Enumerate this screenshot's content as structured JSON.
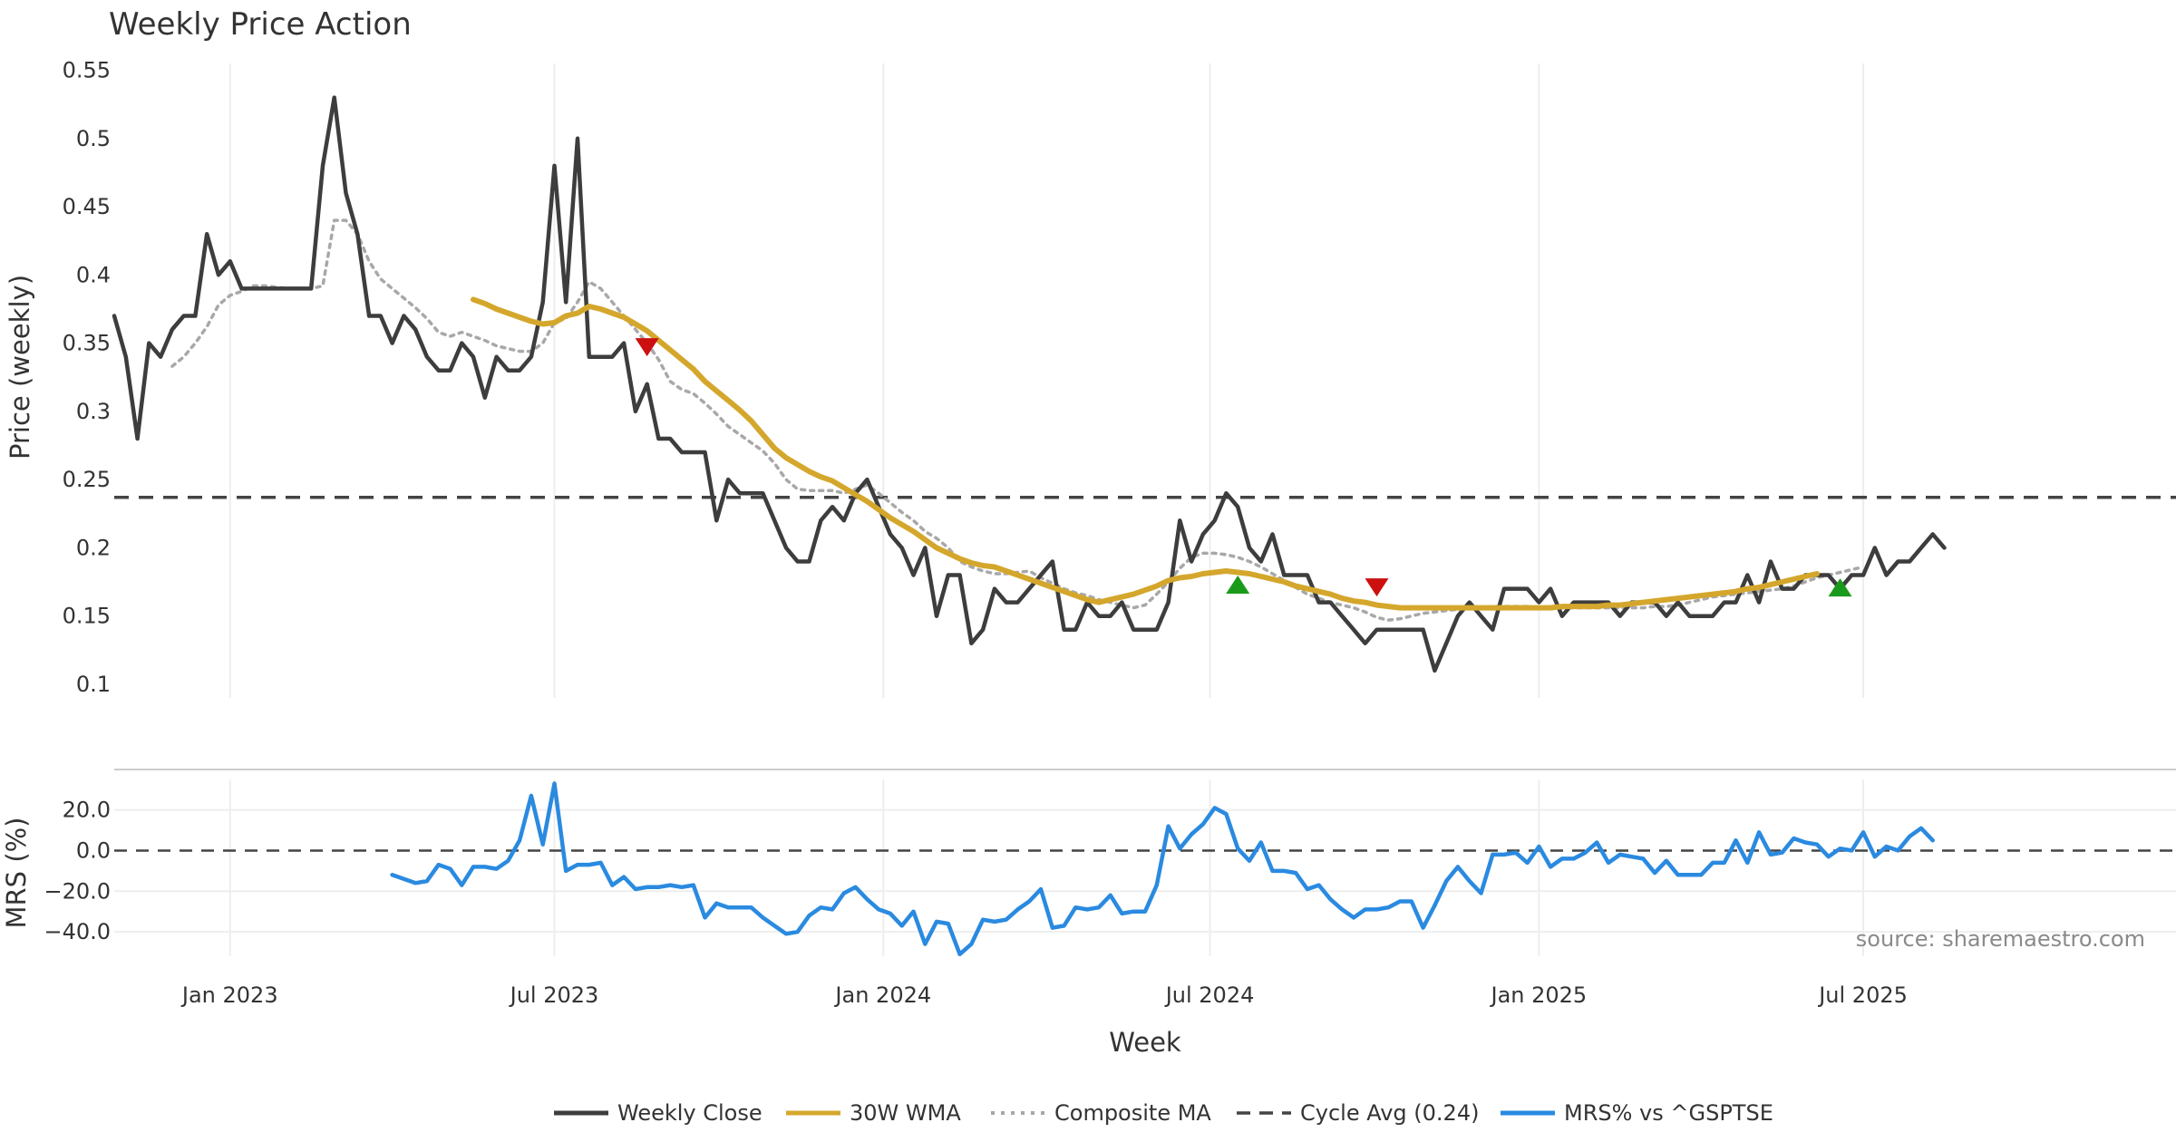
{
  "colors": {
    "close": "#3d3d3d",
    "wma": "#d4a72c",
    "composite": "#a8a8a8",
    "cycle": "#444444",
    "mrs": "#2a8ae0",
    "buy": "#1a9a1a",
    "sell": "#cc1010",
    "grid": "#eeeeee"
  },
  "chart_data": {
    "type": "line",
    "title": "Weekly Price Action",
    "xlabel": "Week",
    "source": "source: sharemaestro.com",
    "x_start_index": 0,
    "x_end_index": 178,
    "date_ticks": [
      {
        "label": "Jan 2023",
        "index": 10
      },
      {
        "label": "Jul 2023",
        "index": 38
      },
      {
        "label": "Jan 2024",
        "index": 66.4
      },
      {
        "label": "Jul 2024",
        "index": 94.6
      },
      {
        "label": "Jan 2025",
        "index": 123
      },
      {
        "label": "Jul 2025",
        "index": 151
      }
    ],
    "price_panel": {
      "ylabel": "Price (weekly)",
      "ylim": [
        0.09,
        0.555
      ],
      "yticks": [
        "0.1",
        "0.15",
        "0.2",
        "0.25",
        "0.3",
        "0.35",
        "0.4",
        "0.45",
        "0.5",
        "0.55"
      ],
      "cycle_avg": 0.237,
      "series": [
        {
          "name": "Weekly Close",
          "start_index": 0,
          "values": [
            0.37,
            0.34,
            0.28,
            0.35,
            0.34,
            0.36,
            0.37,
            0.37,
            0.43,
            0.4,
            0.41,
            0.39,
            0.39,
            0.39,
            0.39,
            0.39,
            0.39,
            0.39,
            0.48,
            0.53,
            0.46,
            0.43,
            0.37,
            0.37,
            0.35,
            0.37,
            0.36,
            0.34,
            0.33,
            0.33,
            0.35,
            0.34,
            0.31,
            0.34,
            0.33,
            0.33,
            0.34,
            0.38,
            0.48,
            0.38,
            0.5,
            0.34,
            0.34,
            0.34,
            0.35,
            0.3,
            0.32,
            0.28,
            0.28,
            0.27,
            0.27,
            0.27,
            0.22,
            0.25,
            0.24,
            0.24,
            0.24,
            0.22,
            0.2,
            0.19,
            0.19,
            0.22,
            0.23,
            0.22,
            0.24,
            0.25,
            0.23,
            0.21,
            0.2,
            0.18,
            0.2,
            0.15,
            0.18,
            0.18,
            0.13,
            0.14,
            0.17,
            0.16,
            0.16,
            0.17,
            0.18,
            0.19,
            0.14,
            0.14,
            0.16,
            0.15,
            0.15,
            0.16,
            0.14,
            0.14,
            0.14,
            0.16,
            0.22,
            0.19,
            0.21,
            0.22,
            0.24,
            0.23,
            0.2,
            0.19,
            0.21,
            0.18,
            0.18,
            0.18,
            0.16,
            0.16,
            0.15,
            0.14,
            0.13,
            0.14,
            0.14,
            0.14,
            0.14,
            0.14,
            0.11,
            0.13,
            0.15,
            0.16,
            0.15,
            0.14,
            0.17,
            0.17,
            0.17,
            0.16,
            0.17,
            0.15,
            0.16,
            0.16,
            0.16,
            0.16,
            0.15,
            0.16,
            0.16,
            0.16,
            0.15,
            0.16,
            0.15,
            0.15,
            0.15,
            0.16,
            0.16,
            0.18,
            0.16,
            0.19,
            0.17,
            0.17,
            0.18,
            0.18,
            0.18,
            0.17,
            0.18,
            0.18,
            0.2,
            0.18,
            0.19,
            0.19,
            0.2,
            0.21,
            0.2
          ]
        },
        {
          "name": "30W WMA",
          "start_index": 31,
          "values": [
            0.382,
            0.379,
            0.375,
            0.372,
            0.369,
            0.366,
            0.364,
            0.365,
            0.37,
            0.372,
            0.377,
            0.375,
            0.372,
            0.369,
            0.364,
            0.359,
            0.352,
            0.345,
            0.338,
            0.331,
            0.322,
            0.315,
            0.308,
            0.301,
            0.293,
            0.283,
            0.273,
            0.266,
            0.261,
            0.256,
            0.252,
            0.249,
            0.244,
            0.239,
            0.234,
            0.228,
            0.222,
            0.217,
            0.212,
            0.206,
            0.2,
            0.196,
            0.192,
            0.189,
            0.187,
            0.186,
            0.183,
            0.18,
            0.177,
            0.174,
            0.171,
            0.168,
            0.165,
            0.162,
            0.16,
            0.162,
            0.164,
            0.166,
            0.169,
            0.172,
            0.176,
            0.178,
            0.179,
            0.181,
            0.182,
            0.183,
            0.182,
            0.181,
            0.179,
            0.177,
            0.175,
            0.172,
            0.17,
            0.168,
            0.166,
            0.163,
            0.161,
            0.16,
            0.158,
            0.157,
            0.156,
            0.156,
            0.156,
            0.156,
            0.156,
            0.156,
            0.156,
            0.156,
            0.156,
            0.156,
            0.156,
            0.156,
            0.156,
            0.156,
            0.157,
            0.157,
            0.157,
            0.157,
            0.158,
            0.158,
            0.159,
            0.16,
            0.161,
            0.162,
            0.163,
            0.164,
            0.165,
            0.166,
            0.167,
            0.168,
            0.17,
            0.171,
            0.173,
            0.175,
            0.177,
            0.179,
            0.181
          ]
        },
        {
          "name": "Composite MA",
          "start_index": 5,
          "values": [
            0.333,
            0.34,
            0.35,
            0.362,
            0.378,
            0.385,
            0.388,
            0.392,
            0.392,
            0.391,
            0.39,
            0.39,
            0.39,
            0.392,
            0.44,
            0.44,
            0.43,
            0.41,
            0.397,
            0.39,
            0.383,
            0.376,
            0.368,
            0.358,
            0.355,
            0.358,
            0.355,
            0.352,
            0.348,
            0.346,
            0.344,
            0.344,
            0.35,
            0.365,
            0.368,
            0.38,
            0.395,
            0.39,
            0.38,
            0.37,
            0.36,
            0.35,
            0.338,
            0.322,
            0.316,
            0.313,
            0.306,
            0.298,
            0.289,
            0.283,
            0.277,
            0.271,
            0.262,
            0.25,
            0.243,
            0.242,
            0.242,
            0.242,
            0.24,
            0.243,
            0.246,
            0.24,
            0.233,
            0.226,
            0.22,
            0.212,
            0.207,
            0.2,
            0.19,
            0.186,
            0.183,
            0.181,
            0.181,
            0.182,
            0.183,
            0.178,
            0.174,
            0.17,
            0.167,
            0.165,
            0.162,
            0.16,
            0.158,
            0.156,
            0.158,
            0.166,
            0.175,
            0.185,
            0.193,
            0.196,
            0.196,
            0.195,
            0.193,
            0.19,
            0.186,
            0.181,
            0.176,
            0.171,
            0.166,
            0.163,
            0.16,
            0.158,
            0.156,
            0.153,
            0.149,
            0.147,
            0.148,
            0.15,
            0.152,
            0.153,
            0.154,
            0.155,
            0.156,
            0.156,
            0.157,
            0.157,
            0.157,
            0.157,
            0.156,
            0.156,
            0.156,
            0.156,
            0.156,
            0.156,
            0.156,
            0.156,
            0.156,
            0.156,
            0.157,
            0.157,
            0.158,
            0.16,
            0.162,
            0.164,
            0.165,
            0.166,
            0.167,
            0.168,
            0.169,
            0.17,
            0.172,
            0.175,
            0.178,
            0.18,
            0.182,
            0.184,
            0.186
          ]
        }
      ],
      "signals": [
        {
          "type": "sell",
          "index": 46,
          "value": 0.347
        },
        {
          "type": "buy",
          "index": 97,
          "value": 0.173
        },
        {
          "type": "sell",
          "index": 109,
          "value": 0.171
        },
        {
          "type": "buy",
          "index": 149,
          "value": 0.171
        }
      ]
    },
    "mrs_panel": {
      "ylabel": "MRS (%)",
      "ylim": [
        -52,
        35
      ],
      "yticks": [
        "20.0",
        "0.0",
        "−20.0",
        "−40.0"
      ],
      "zero_line": 0,
      "series": {
        "name": "MRS% vs ^GSPTSE",
        "start_index": 24,
        "values": [
          -12,
          -14,
          -16,
          -15,
          -7,
          -9,
          -17,
          -8,
          -8,
          -9,
          -5,
          5,
          27,
          3,
          33,
          -10,
          -7,
          -7,
          -6,
          -17,
          -13,
          -19,
          -18,
          -18,
          -17,
          -18,
          -17,
          -33,
          -26,
          -28,
          -28,
          -28,
          -33,
          -37,
          -41,
          -40,
          -32,
          -28,
          -29,
          -21,
          -18,
          -24,
          -29,
          -31,
          -37,
          -30,
          -46,
          -35,
          -36,
          -51,
          -46,
          -34,
          -35,
          -34,
          -29,
          -25,
          -19,
          -38,
          -37,
          -28,
          -29,
          -28,
          -22,
          -31,
          -30,
          -30,
          -17,
          12,
          1,
          8,
          13,
          21,
          18,
          1,
          -5,
          4,
          -10,
          -10,
          -11,
          -19,
          -17,
          -24,
          -29,
          -33,
          -29,
          -29,
          -28,
          -25,
          -25,
          -38,
          -27,
          -15,
          -8,
          -15,
          -21,
          -2,
          -2,
          -1,
          -6,
          2,
          -8,
          -4,
          -4,
          -1,
          4,
          -6,
          -2,
          -3,
          -4,
          -11,
          -5,
          -12,
          -12,
          -12,
          -6,
          -6,
          5,
          -6,
          9,
          -2,
          -1,
          6,
          4,
          3,
          -3,
          1,
          0,
          9,
          -3,
          2,
          0,
          7,
          11,
          5
        ]
      }
    },
    "legend": [
      {
        "label": "Weekly Close",
        "style": "solid",
        "color_key": "close"
      },
      {
        "label": "30W WMA",
        "style": "solid",
        "color_key": "wma"
      },
      {
        "label": "Composite MA",
        "style": "dotted",
        "color_key": "composite"
      },
      {
        "label": "Cycle Avg (0.24)",
        "style": "dashed",
        "color_key": "cycle"
      },
      {
        "label": "MRS% vs ^GSPTSE",
        "style": "solid",
        "color_key": "mrs"
      }
    ]
  }
}
